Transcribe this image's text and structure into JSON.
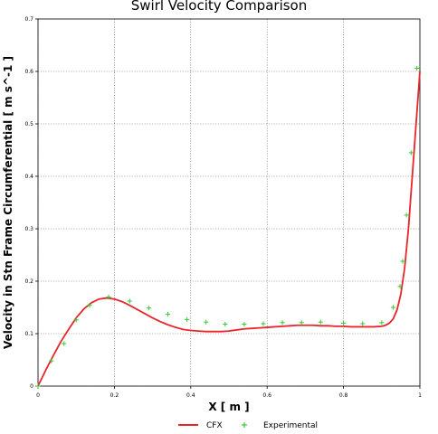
{
  "chart_data": {
    "type": "line",
    "title": "Swirl Velocity Comparison",
    "xlabel": "X [ m ]",
    "ylabel": "Velocity in Stn Frame Circumferential [ m s^-1 ]",
    "xlim": [
      0,
      1
    ],
    "ylim": [
      0,
      0.7
    ],
    "x_ticks": [
      "0",
      "0.2",
      "0.4",
      "0.6",
      "0.8",
      "1"
    ],
    "y_ticks": [
      "0",
      "0.1",
      "0.2",
      "0.3",
      "0.4",
      "0.5",
      "0.6",
      "0.7"
    ],
    "grid": true,
    "legend_position": "bottom",
    "series": [
      {
        "name": "CFX",
        "style": "line",
        "color": "#e8262b",
        "x": [
          0,
          0.02,
          0.04,
          0.06,
          0.08,
          0.1,
          0.12,
          0.14,
          0.16,
          0.18,
          0.2,
          0.22,
          0.24,
          0.26,
          0.28,
          0.3,
          0.32,
          0.34,
          0.36,
          0.38,
          0.4,
          0.42,
          0.44,
          0.46,
          0.48,
          0.5,
          0.52,
          0.54,
          0.56,
          0.58,
          0.6,
          0.62,
          0.64,
          0.66,
          0.68,
          0.7,
          0.72,
          0.74,
          0.76,
          0.78,
          0.8,
          0.82,
          0.84,
          0.86,
          0.88,
          0.9,
          0.91,
          0.92,
          0.93,
          0.94,
          0.95,
          0.96,
          0.97,
          0.98,
          0.99,
          1.0
        ],
        "values": [
          0.0,
          0.03,
          0.058,
          0.085,
          0.108,
          0.13,
          0.147,
          0.159,
          0.166,
          0.168,
          0.166,
          0.161,
          0.154,
          0.146,
          0.138,
          0.13,
          0.123,
          0.117,
          0.112,
          0.108,
          0.106,
          0.105,
          0.104,
          0.104,
          0.104,
          0.105,
          0.107,
          0.109,
          0.11,
          0.111,
          0.112,
          0.113,
          0.114,
          0.115,
          0.116,
          0.116,
          0.116,
          0.115,
          0.115,
          0.114,
          0.114,
          0.113,
          0.113,
          0.113,
          0.113,
          0.114,
          0.116,
          0.12,
          0.128,
          0.145,
          0.175,
          0.225,
          0.3,
          0.4,
          0.5,
          0.6
        ]
      },
      {
        "name": "Experimental",
        "style": "markers",
        "marker": "+",
        "color": "#33cc33",
        "x": [
          0,
          0.035,
          0.068,
          0.1,
          0.135,
          0.185,
          0.24,
          0.29,
          0.34,
          0.39,
          0.44,
          0.49,
          0.54,
          0.59,
          0.64,
          0.69,
          0.74,
          0.8,
          0.85,
          0.9,
          0.93,
          0.948,
          0.955,
          0.965,
          0.977,
          0.992
        ],
        "values": [
          0.0,
          0.048,
          0.081,
          0.126,
          0.154,
          0.17,
          0.162,
          0.149,
          0.137,
          0.127,
          0.122,
          0.118,
          0.118,
          0.119,
          0.121,
          0.121,
          0.122,
          0.12,
          0.119,
          0.121,
          0.15,
          0.19,
          0.238,
          0.326,
          0.445,
          0.606
        ]
      }
    ]
  }
}
